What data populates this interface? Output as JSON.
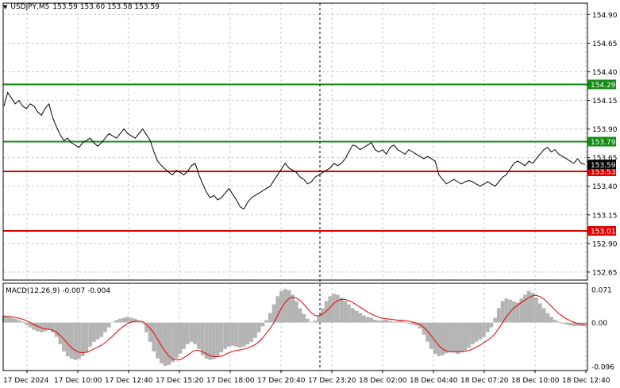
{
  "header": {
    "menu_icon": "triangle-down-icon",
    "symbol": "USDJPY,M5",
    "ohlc": "153.59 153.60 153.58 153.59"
  },
  "macd_label": "MACD(12,26,9) -0.007 -0.004",
  "price_ticks": [
    "154.90",
    "154.65",
    "154.40",
    "154.15",
    "153.90",
    "153.65",
    "153.40",
    "153.15",
    "152.90",
    "152.65"
  ],
  "macd_ticks": [
    "0.071",
    "0.00",
    "-0.096"
  ],
  "time_ticks": [
    "17 Dec 2024",
    "17 Dec 10:00",
    "17 Dec 12:40",
    "17 Dec 15:20",
    "17 Dec 18:00",
    "17 Dec 20:40",
    "17 Dec 23:20",
    "18 Dec 02:00",
    "18 Dec 04:40",
    "18 Dec 07:20",
    "18 Dec 10:00",
    "18 Dec 12:40"
  ],
  "levels": [
    {
      "value": 154.29,
      "label": "154.29",
      "color": "#138a13"
    },
    {
      "value": 153.79,
      "label": "153.79",
      "color": "#138a13"
    },
    {
      "value": 153.53,
      "label": "153.53",
      "color": "#e00000"
    },
    {
      "value": 153.01,
      "label": "153.01",
      "color": "#e00000"
    }
  ],
  "current_price": {
    "value": 153.59,
    "label": "153.59",
    "color": "#000000"
  },
  "colors": {
    "grid": "#c8c8c8",
    "price_line": "#000000",
    "histogram": "#b4b4b4",
    "signal": "#e00000"
  },
  "chart_data": {
    "type": "line",
    "price_range": [
      152.58,
      155.0
    ],
    "macd_range": [
      -0.1,
      0.082
    ],
    "price_series": [
      154.1,
      154.22,
      154.17,
      154.12,
      154.15,
      154.1,
      154.08,
      154.12,
      154.1,
      154.05,
      154.02,
      154.08,
      154.12,
      154.0,
      153.92,
      153.85,
      153.8,
      153.82,
      153.78,
      153.76,
      153.74,
      153.78,
      153.8,
      153.82,
      153.78,
      153.75,
      153.78,
      153.82,
      153.86,
      153.84,
      153.82,
      153.86,
      153.9,
      153.86,
      153.84,
      153.82,
      153.86,
      153.9,
      153.85,
      153.8,
      153.7,
      153.62,
      153.58,
      153.55,
      153.52,
      153.5,
      153.54,
      153.52,
      153.5,
      153.53,
      153.58,
      153.6,
      153.5,
      153.42,
      153.35,
      153.3,
      153.32,
      153.28,
      153.3,
      153.34,
      153.38,
      153.33,
      153.28,
      153.22,
      153.2,
      153.26,
      153.3,
      153.32,
      153.34,
      153.36,
      153.38,
      153.4,
      153.45,
      153.5,
      153.55,
      153.6,
      153.56,
      153.54,
      153.52,
      153.48,
      153.46,
      153.42,
      153.44,
      153.48,
      153.5,
      153.52,
      153.54,
      153.56,
      153.6,
      153.58,
      153.6,
      153.64,
      153.7,
      153.76,
      153.75,
      153.72,
      153.74,
      153.76,
      153.78,
      153.72,
      153.7,
      153.72,
      153.68,
      153.74,
      153.76,
      153.72,
      153.7,
      153.68,
      153.72,
      153.7,
      153.68,
      153.66,
      153.64,
      153.66,
      153.64,
      153.62,
      153.5,
      153.46,
      153.42,
      153.44,
      153.46,
      153.44,
      153.42,
      153.44,
      153.45,
      153.44,
      153.42,
      153.4,
      153.42,
      153.44,
      153.42,
      153.4,
      153.44,
      153.48,
      153.5,
      153.55,
      153.6,
      153.62,
      153.6,
      153.58,
      153.62,
      153.6,
      153.64,
      153.68,
      153.72,
      153.74,
      153.7,
      153.72,
      153.68,
      153.66,
      153.64,
      153.62,
      153.6,
      153.64,
      153.6,
      153.59
    ],
    "macd_histogram": [
      0.015,
      0.012,
      0.01,
      0.008,
      0.005,
      0.002,
      -0.005,
      -0.01,
      -0.015,
      -0.018,
      -0.02,
      -0.018,
      -0.015,
      -0.02,
      -0.03,
      -0.045,
      -0.06,
      -0.07,
      -0.075,
      -0.078,
      -0.076,
      -0.07,
      -0.062,
      -0.05,
      -0.04,
      -0.035,
      -0.03,
      -0.02,
      -0.01,
      0.0,
      0.005,
      0.008,
      0.01,
      0.012,
      0.01,
      0.008,
      0.004,
      -0.002,
      -0.02,
      -0.04,
      -0.06,
      -0.075,
      -0.085,
      -0.09,
      -0.088,
      -0.082,
      -0.075,
      -0.065,
      -0.055,
      -0.045,
      -0.04,
      -0.045,
      -0.055,
      -0.068,
      -0.075,
      -0.078,
      -0.076,
      -0.07,
      -0.062,
      -0.055,
      -0.05,
      -0.048,
      -0.05,
      -0.052,
      -0.05,
      -0.045,
      -0.04,
      -0.032,
      -0.02,
      -0.008,
      0.005,
      0.02,
      0.038,
      0.055,
      0.066,
      0.07,
      0.068,
      0.058,
      0.045,
      0.03,
      0.018,
      0.008,
      0.0,
      0.004,
      0.015,
      0.03,
      0.045,
      0.055,
      0.06,
      0.058,
      0.052,
      0.045,
      0.038,
      0.03,
      0.025,
      0.02,
      0.015,
      0.012,
      0.01,
      0.006,
      0.004,
      0.005,
      0.006,
      0.004,
      0.002,
      0.003,
      0.004,
      0.002,
      -0.002,
      -0.004,
      -0.006,
      -0.012,
      -0.025,
      -0.04,
      -0.055,
      -0.065,
      -0.07,
      -0.068,
      -0.064,
      -0.06,
      -0.062,
      -0.065,
      -0.062,
      -0.058,
      -0.052,
      -0.045,
      -0.04,
      -0.035,
      -0.03,
      -0.02,
      -0.01,
      0.01,
      0.03,
      0.045,
      0.05,
      0.048,
      0.044,
      0.042,
      0.05,
      0.058,
      0.066,
      0.062,
      0.052,
      0.04,
      0.03,
      0.02,
      0.012,
      0.006,
      0.002,
      -0.002,
      -0.004,
      -0.006,
      -0.007,
      -0.007,
      -0.007,
      -0.007
    ],
    "macd_signal": [
      0.012,
      0.013,
      0.012,
      0.011,
      0.009,
      0.007,
      0.004,
      0.0,
      -0.004,
      -0.008,
      -0.011,
      -0.013,
      -0.014,
      -0.016,
      -0.02,
      -0.027,
      -0.035,
      -0.044,
      -0.052,
      -0.058,
      -0.062,
      -0.063,
      -0.062,
      -0.059,
      -0.055,
      -0.051,
      -0.047,
      -0.042,
      -0.035,
      -0.028,
      -0.02,
      -0.013,
      -0.007,
      -0.002,
      0.001,
      0.003,
      0.003,
      0.002,
      -0.004,
      -0.012,
      -0.022,
      -0.035,
      -0.048,
      -0.06,
      -0.07,
      -0.076,
      -0.078,
      -0.077,
      -0.073,
      -0.068,
      -0.062,
      -0.058,
      -0.058,
      -0.061,
      -0.065,
      -0.069,
      -0.071,
      -0.071,
      -0.07,
      -0.067,
      -0.063,
      -0.06,
      -0.058,
      -0.057,
      -0.055,
      -0.053,
      -0.05,
      -0.046,
      -0.04,
      -0.032,
      -0.022,
      -0.012,
      0.0,
      0.015,
      0.03,
      0.042,
      0.05,
      0.053,
      0.051,
      0.046,
      0.038,
      0.029,
      0.02,
      0.015,
      0.014,
      0.018,
      0.024,
      0.032,
      0.04,
      0.046,
      0.048,
      0.048,
      0.046,
      0.042,
      0.037,
      0.032,
      0.027,
      0.022,
      0.018,
      0.014,
      0.011,
      0.009,
      0.008,
      0.007,
      0.006,
      0.005,
      0.005,
      0.004,
      0.003,
      0.001,
      -0.001,
      -0.004,
      -0.01,
      -0.018,
      -0.028,
      -0.038,
      -0.048,
      -0.055,
      -0.059,
      -0.061,
      -0.061,
      -0.061,
      -0.061,
      -0.06,
      -0.058,
      -0.055,
      -0.051,
      -0.047,
      -0.042,
      -0.037,
      -0.031,
      -0.023,
      -0.012,
      0.0,
      0.012,
      0.022,
      0.03,
      0.036,
      0.042,
      0.047,
      0.052,
      0.056,
      0.057,
      0.054,
      0.049,
      0.042,
      0.034,
      0.026,
      0.019,
      0.013,
      0.008,
      0.004,
      0.001,
      -0.002,
      -0.003,
      -0.004
    ]
  }
}
